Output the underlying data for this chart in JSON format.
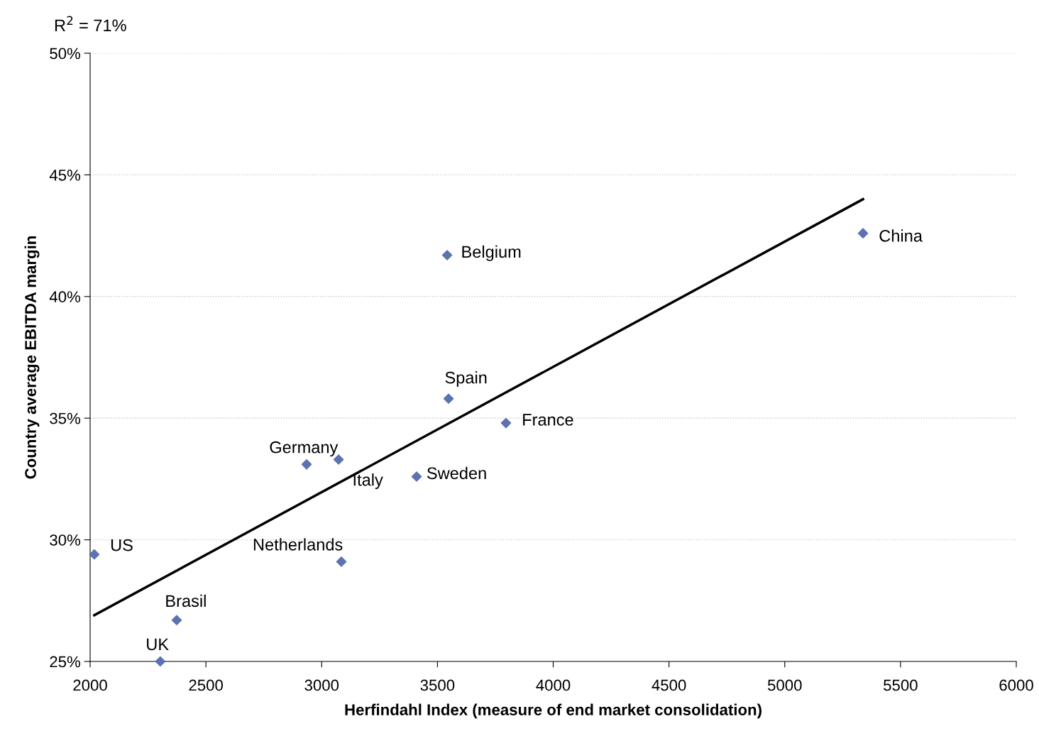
{
  "chart_data": {
    "type": "scatter",
    "xlabel": "Herfindahl Index (measure of end market consolidation)",
    "ylabel": "Country average EBITDA margin",
    "xlim": [
      2000,
      6000
    ],
    "xticks": [
      2000,
      2500,
      3000,
      3500,
      4000,
      4500,
      5000,
      5500,
      6000
    ],
    "ylim": [
      25,
      50
    ],
    "yticks": [
      {
        "value": 25,
        "label": "25%"
      },
      {
        "value": 30,
        "label": "30%"
      },
      {
        "value": 35,
        "label": "35%"
      },
      {
        "value": 40,
        "label": "40%"
      },
      {
        "value": 45,
        "label": "45%"
      },
      {
        "value": 50,
        "label": "50%"
      }
    ],
    "grid": "y",
    "legend": false,
    "series": [
      {
        "marker": "diamond",
        "color": "#5b73b0",
        "x": [
          2018,
          2303,
          2374,
          2935,
          3073,
          3085,
          3410,
          3542,
          3548,
          3796,
          5338
        ],
        "values": [
          29.4,
          25.0,
          26.7,
          33.1,
          33.3,
          29.1,
          32.6,
          41.7,
          35.8,
          34.8,
          42.6
        ]
      },
      {
        "type": "line",
        "marker": "none",
        "color": "#000000",
        "x": [
          2018,
          5338
        ],
        "values": [
          26.9,
          44.0
        ]
      }
    ],
    "annotations": [
      "R$^{2}$ = 71%",
      {
        "text": "US",
        "x": 2018,
        "y": 29.4
      },
      {
        "text": "UK",
        "x": 2303,
        "y": 25.0
      },
      {
        "text": "Brasil",
        "x": 2374,
        "y": 26.7
      },
      {
        "text": "Germany",
        "x": 2935,
        "y": 33.1
      },
      {
        "text": "Italy",
        "x": 3073,
        "y": 33.3
      },
      {
        "text": "Netherlands",
        "x": 3085,
        "y": 29.1
      },
      {
        "text": "Sweden",
        "x": 3410,
        "y": 32.6
      },
      {
        "text": "Belgium",
        "x": 3542,
        "y": 41.7
      },
      {
        "text": "Spain",
        "x": 3548,
        "y": 35.8
      },
      {
        "text": "France",
        "x": 3796,
        "y": 34.8
      },
      {
        "text": "China",
        "x": 5338,
        "y": 42.6
      }
    ]
  }
}
